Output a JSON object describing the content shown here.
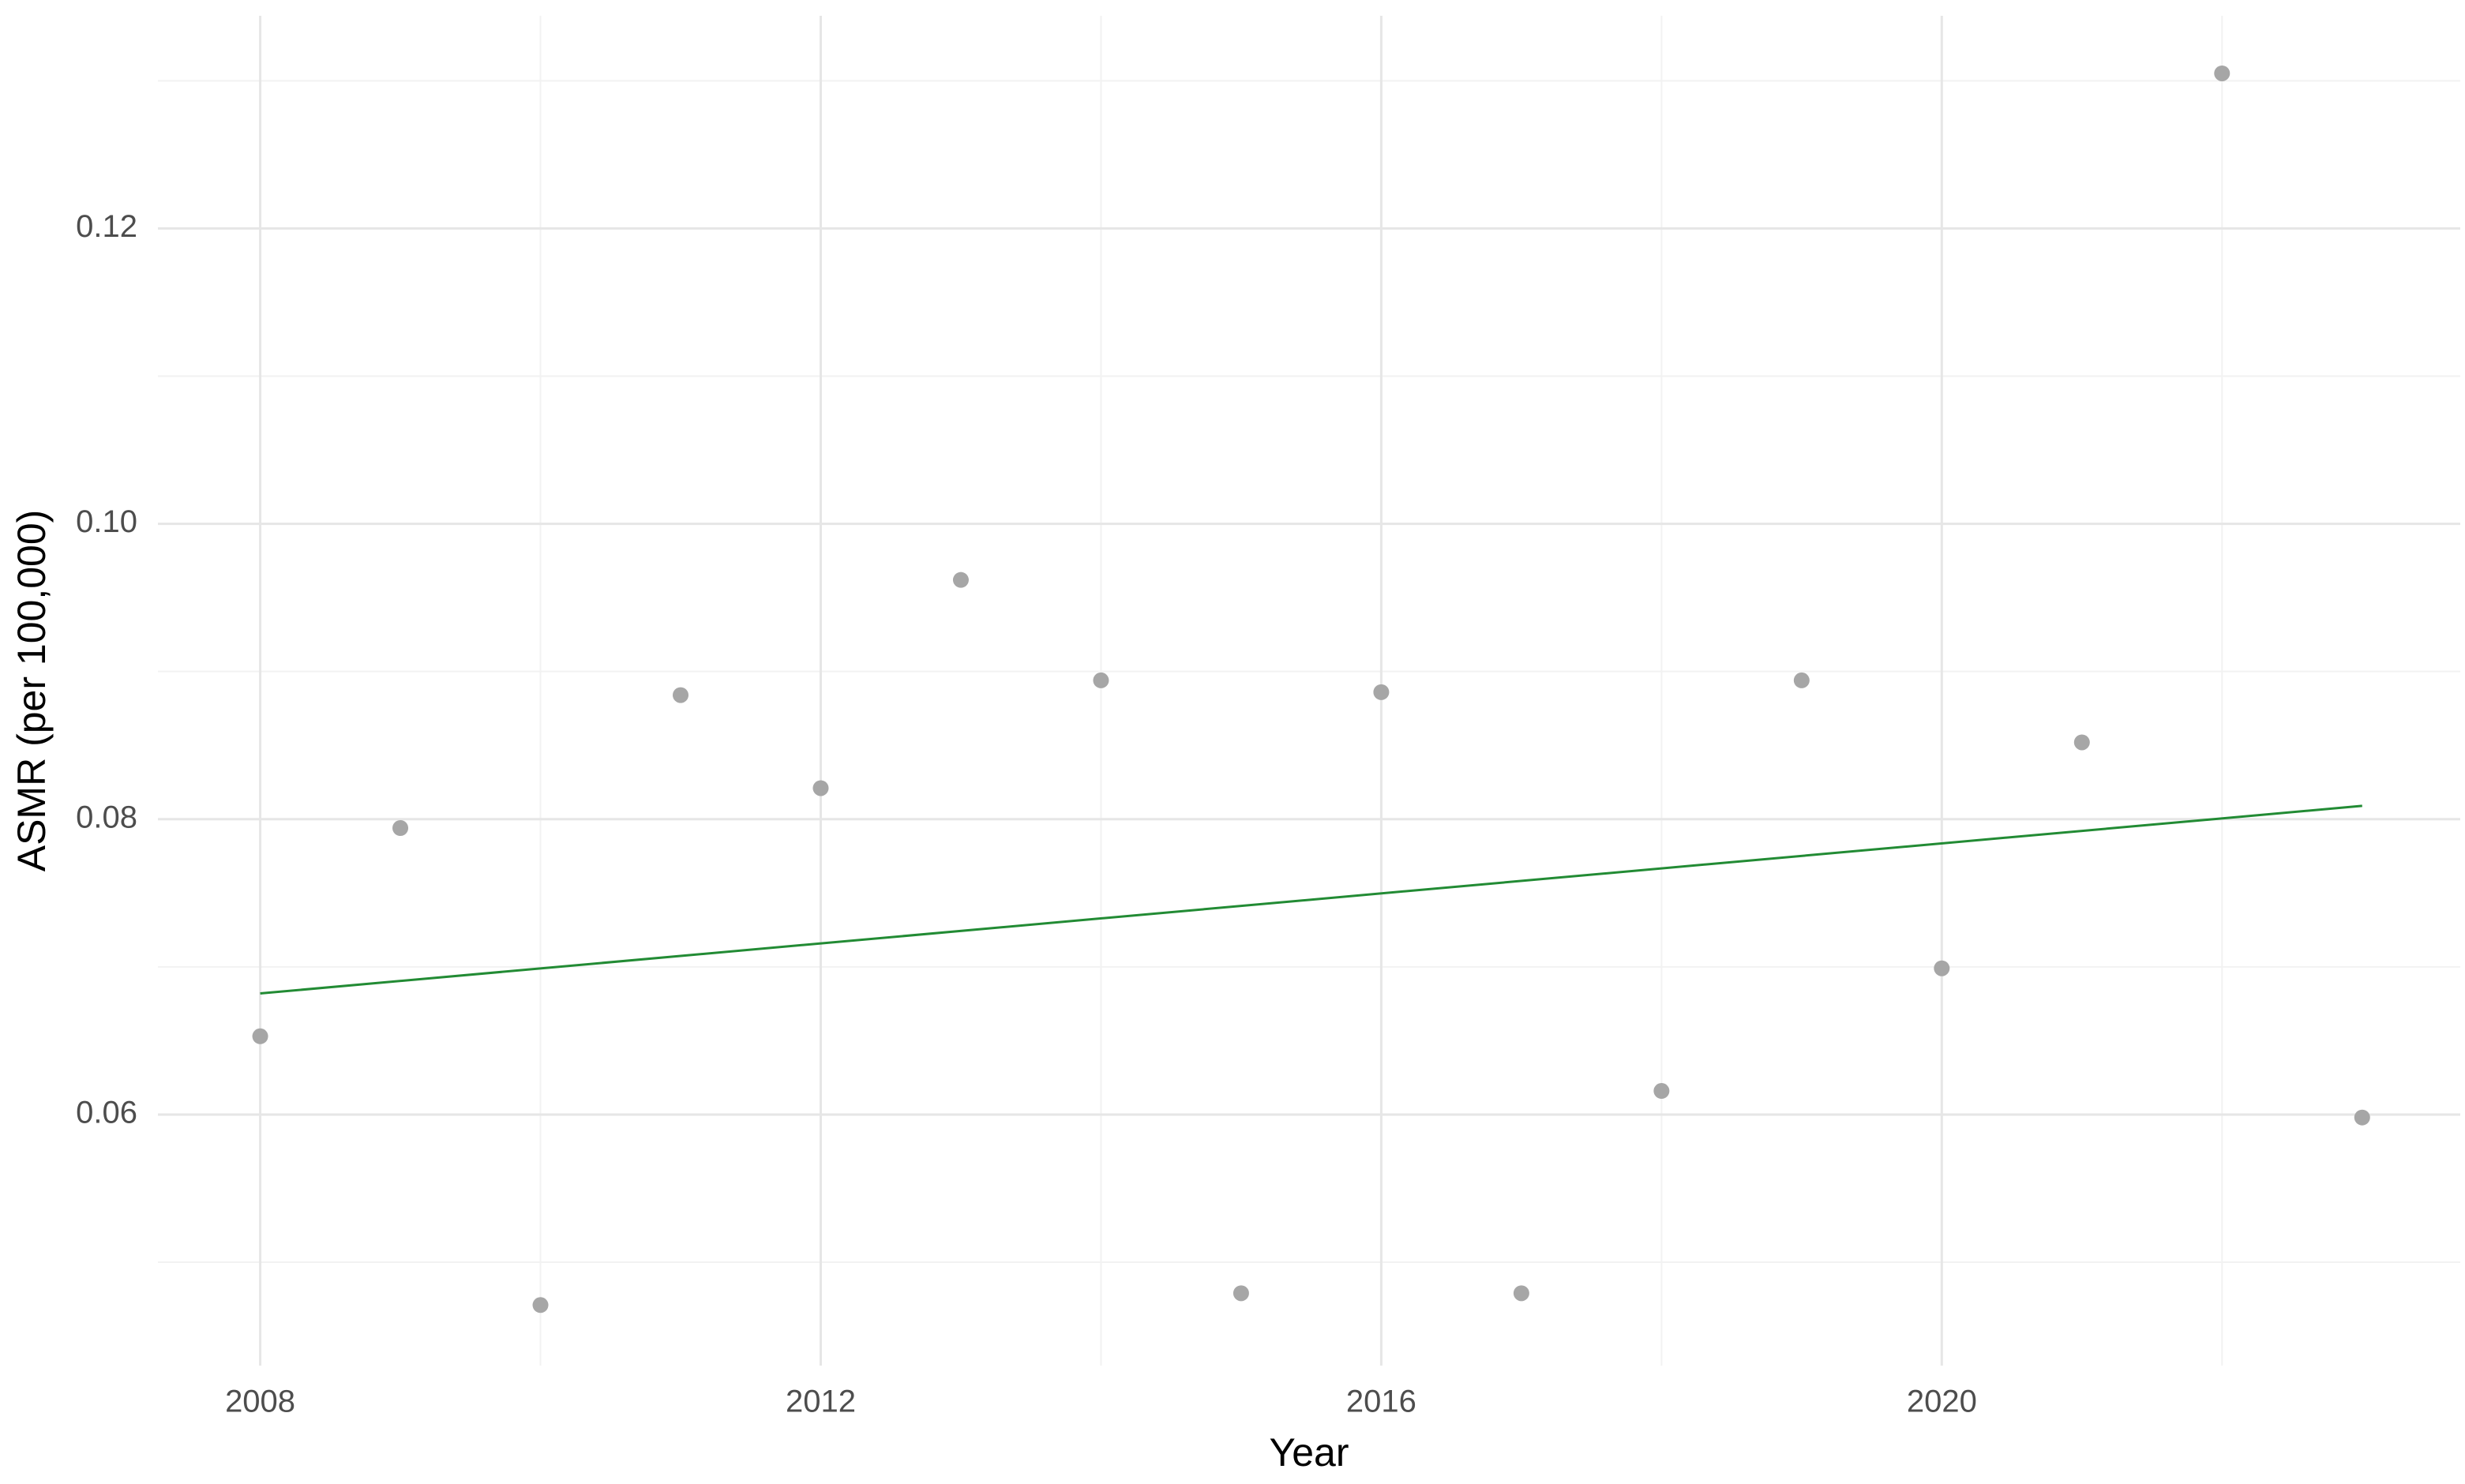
{
  "chart_data": {
    "type": "scatter",
    "x_label": "Year",
    "y_label": "ASMR (per 100,000)",
    "x": [
      2008,
      2009,
      2010,
      2011,
      2012,
      2013,
      2014,
      2015,
      2016,
      2017,
      2018,
      2019,
      2020,
      2021,
      2022,
      2023
    ],
    "values": [
      0.0653,
      0.0794,
      0.0471,
      0.0884,
      0.0821,
      0.0962,
      0.0894,
      0.0479,
      0.0886,
      0.0479,
      0.0616,
      0.0894,
      0.0699,
      0.0852,
      0.1305,
      0.0598
    ],
    "color": "#a6a6a6",
    "trend": {
      "x": [
        2008,
        2023
      ],
      "values": [
        0.0682,
        0.0809
      ],
      "color": "#228b34"
    },
    "xlim": [
      2007.27,
      2023.7
    ],
    "ylim": [
      0.043,
      0.1344
    ],
    "xticks": [
      2008,
      2012,
      2016,
      2020
    ],
    "yticks": [
      0.06,
      0.08,
      {
        "value": 0.1,
        "label": "0.10"
      },
      0.12
    ],
    "x_minor_ticks": [
      2010,
      2014,
      2018,
      2022
    ],
    "y_minor_ticks": [
      0.05,
      0.07,
      0.09,
      0.11,
      0.13
    ],
    "grid": true
  }
}
